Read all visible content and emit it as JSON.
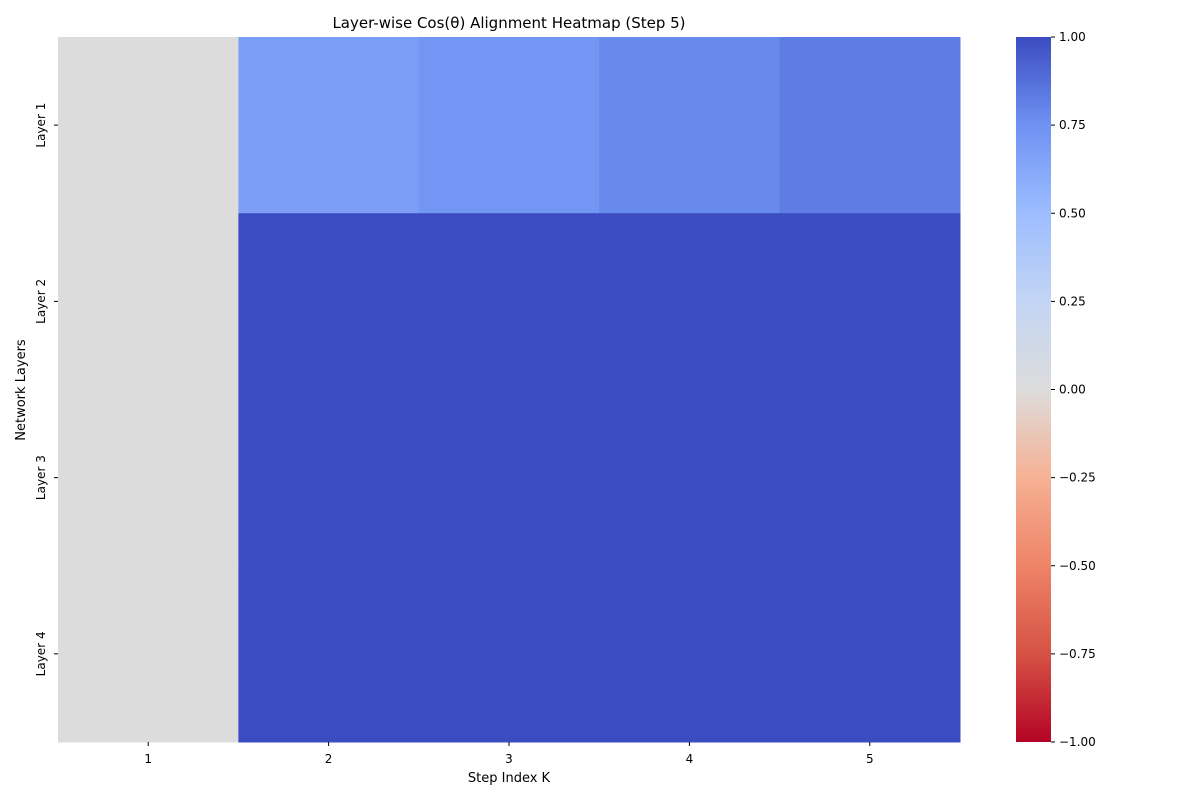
{
  "chart_data": {
    "type": "heatmap",
    "title": "Layer-wise Cos(θ) Alignment Heatmap (Step 5)",
    "xlabel": "Step Index K",
    "ylabel": "Network Layers",
    "x_categories": [
      "1",
      "2",
      "3",
      "4",
      "5"
    ],
    "y_categories": [
      "Layer 1",
      "Layer 2",
      "Layer 3",
      "Layer 4"
    ],
    "values": [
      [
        0.0,
        0.68,
        0.73,
        0.78,
        0.83
      ],
      [
        0.0,
        1.0,
        1.0,
        1.0,
        1.0
      ],
      [
        0.0,
        1.0,
        1.0,
        1.0,
        1.0
      ],
      [
        0.0,
        1.0,
        1.0,
        1.0,
        1.0
      ]
    ],
    "colormap": "coolwarm",
    "vmin": -1.0,
    "vmax": 1.0,
    "colorbar_ticks": [
      "1.00",
      "0.75",
      "0.50",
      "0.25",
      "0.00",
      "−0.25",
      "−0.50",
      "−0.75",
      "−1.00"
    ],
    "colorbar_tick_values": [
      1.0,
      0.75,
      0.5,
      0.25,
      0.0,
      -0.25,
      -0.5,
      -0.75,
      -1.0
    ],
    "grid": false
  }
}
